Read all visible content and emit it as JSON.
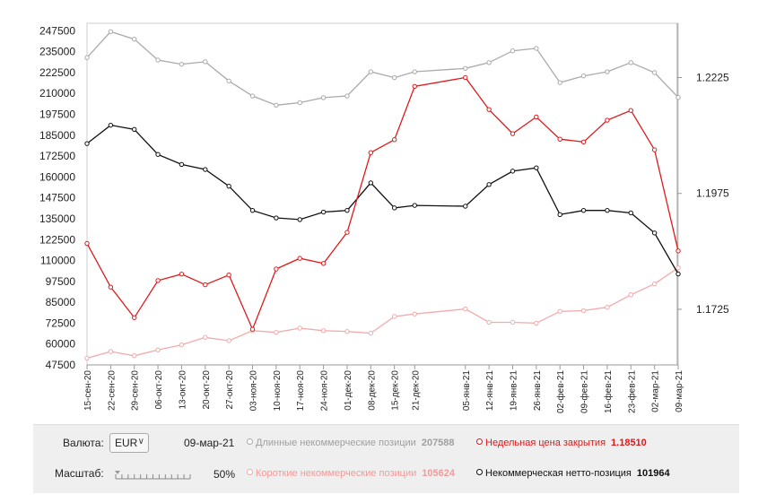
{
  "chart_data": {
    "type": "line",
    "x": [
      "15-сен-20",
      "22-сен-20",
      "29-сен-20",
      "06-окт-20",
      "13-окт-20",
      "20-окт-20",
      "27-окт-20",
      "03-ноя-20",
      "10-ноя-20",
      "17-ноя-20",
      "24-ноя-20",
      "01-дек-20",
      "08-дек-20",
      "15-дек-20",
      "21-дек-20",
      "05-янв-21",
      "12-янв-21",
      "19-янв-21",
      "26-янв-21",
      "02-фев-21",
      "09-фев-21",
      "16-фев-21",
      "23-фев-21",
      "02-мар-21",
      "09-мар-21"
    ],
    "x_labels": [
      "15-сен-20",
      "22-сен-20",
      "29-сен-20",
      "06-окт-20",
      "13-окт-20",
      "20-окт-20",
      "27-окт-20",
      "03-ноя-20",
      "10-ноя-20",
      "17-ноя-20",
      "24-ноя-20",
      "01-дек-20",
      "08-дек-20",
      "15-дек-20",
      "21-дек-20",
      "05-янв-21",
      "12-янв-21",
      "19-янв-21",
      "26-янв-21",
      "02-фев-21",
      "09-фев-21",
      "16-фев-21",
      "23-фев-21",
      "02-мар-21",
      "09-мар-21"
    ],
    "y_left": {
      "ylim": [
        47500,
        252000
      ],
      "ticks": [
        "47500",
        "60000",
        "72500",
        "85000",
        "97500",
        "110000",
        "122500",
        "135000",
        "147500",
        "160000",
        "172500",
        "185000",
        "197500",
        "210000",
        "222500",
        "235000",
        "247500"
      ]
    },
    "y_right": {
      "ylim": [
        1.1605,
        1.2342
      ],
      "ticks": [
        "1.1725",
        "1.1975",
        "1.2225"
      ]
    },
    "series": [
      {
        "name": "Длинные некоммерческие позиции",
        "axis": "left",
        "color": "#aaaaaa",
        "values": [
          231500,
          247000,
          242500,
          230000,
          227500,
          229000,
          217500,
          208500,
          203000,
          204500,
          207500,
          208500,
          223000,
          219500,
          223000,
          225000,
          228500,
          235500,
          237000,
          216500,
          220500,
          223000,
          228500,
          222500,
          207588
        ]
      },
      {
        "name": "Короткие некоммерческие позиции",
        "axis": "left",
        "color": "#f2aaaa",
        "values": [
          51500,
          55500,
          53000,
          56500,
          59500,
          64000,
          62000,
          68000,
          67000,
          69500,
          68000,
          67500,
          66500,
          76500,
          78000,
          81000,
          73000,
          73000,
          72500,
          79500,
          80000,
          82000,
          89500,
          96000,
          105624
        ]
      },
      {
        "name": "Некоммерческая нетто-позиция",
        "axis": "left",
        "color": "#111111",
        "values": [
          180000,
          191000,
          188500,
          173500,
          167500,
          164500,
          154500,
          140000,
          135500,
          134500,
          139000,
          140000,
          156500,
          141500,
          143000,
          142500,
          155500,
          163500,
          165500,
          137500,
          140000,
          140000,
          138500,
          126500,
          101964
        ]
      },
      {
        "name": "Недельная цена закрытия",
        "axis": "right",
        "color": "#e0191b",
        "values": [
          1.1867,
          1.1773,
          1.1707,
          1.1787,
          1.1801,
          1.1778,
          1.1799,
          1.1682,
          1.1812,
          1.1835,
          1.1824,
          1.1891,
          1.2063,
          1.2091,
          1.2206,
          1.2225,
          1.2156,
          1.2104,
          1.214,
          1.2092,
          1.2086,
          1.2133,
          1.2154,
          1.2069,
          1.1851
        ]
      }
    ],
    "grid": false,
    "legend": "bottom"
  },
  "controls": {
    "currency_label": "Валюта:",
    "currency_value": "EUR",
    "date": "09-мар-21",
    "scale_label": "Масштаб:",
    "scale_value": "50%",
    "scale_fraction": 0.0
  },
  "legend": {
    "long_label": "Длинные некоммерческие позиции",
    "long_value": "207588",
    "close_label": "Недельная цена закрытия",
    "close_value": "1.18510",
    "short_label": "Короткие некоммерческие позиции",
    "short_value": "105624",
    "net_label": "Некоммерческая нетто-позиция",
    "net_value": "101964"
  },
  "colors": {
    "long": "#aaaaaa",
    "short": "#f2aaaa",
    "net": "#111111",
    "close": "#e0191b",
    "close_text": "#e0191b",
    "short_text": "#f29a9a",
    "long_text": "#a0a0a0"
  }
}
